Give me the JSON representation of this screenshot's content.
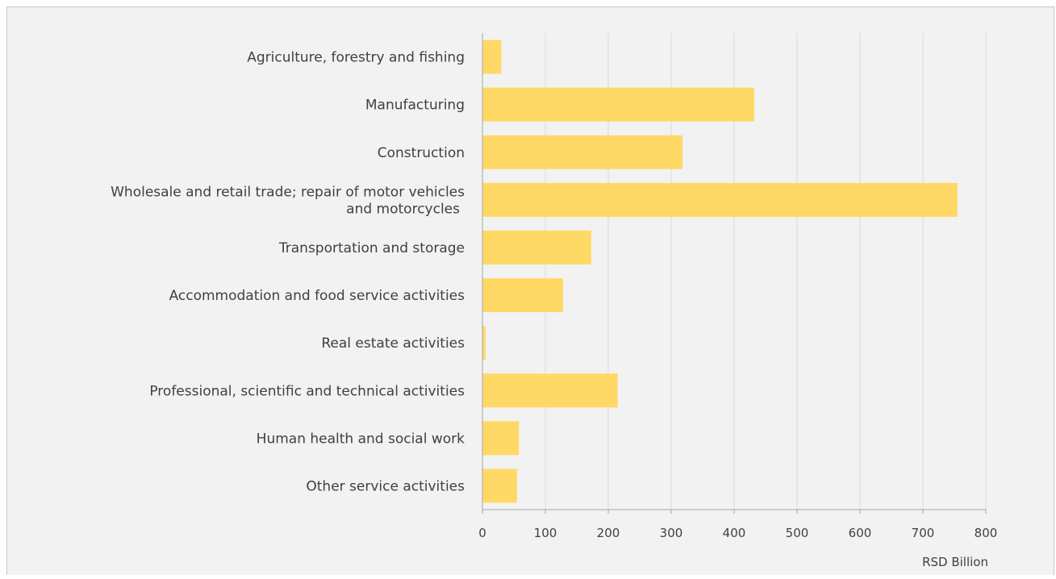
{
  "chart_data": {
    "type": "bar",
    "orientation": "horizontal",
    "categories": [
      "Agriculture, forestry and fishing",
      "Manufacturing",
      "Construction",
      "Wholesale and retail trade; repair of motor vehicles and motorcycles",
      "Transportation and storage",
      "Accommodation and food service activities",
      "Real estate activities",
      "Professional, scientific and technical activities",
      "Human health and social work",
      "Other service activities"
    ],
    "category_label_lines": [
      [
        "Agriculture, forestry and fishing"
      ],
      [
        "Manufacturing"
      ],
      [
        "Construction"
      ],
      [
        "Wholesale and retail trade; repair of motor vehicles",
        "and motorcycles"
      ],
      [
        "Transportation and storage"
      ],
      [
        "Accommodation and food service activities"
      ],
      [
        "Real estate activities"
      ],
      [
        "Professional, scientific and technical activities"
      ],
      [
        "Human health and social work"
      ],
      [
        "Other service activities"
      ]
    ],
    "values": [
      30,
      432,
      318,
      755,
      173,
      128,
      5,
      215,
      58,
      55
    ],
    "xlim": [
      0,
      800
    ],
    "xticks": [
      0,
      100,
      200,
      300,
      400,
      500,
      600,
      700,
      800
    ],
    "xlabel": "RSD Billion",
    "title": "",
    "ylabel": "",
    "grid": true,
    "legend": false,
    "colors": {
      "bar": "#ffd966",
      "grid": "#d9d9d9",
      "axis": "#a6a6a6",
      "text": "#404040",
      "background": "#f2f2f2"
    }
  }
}
